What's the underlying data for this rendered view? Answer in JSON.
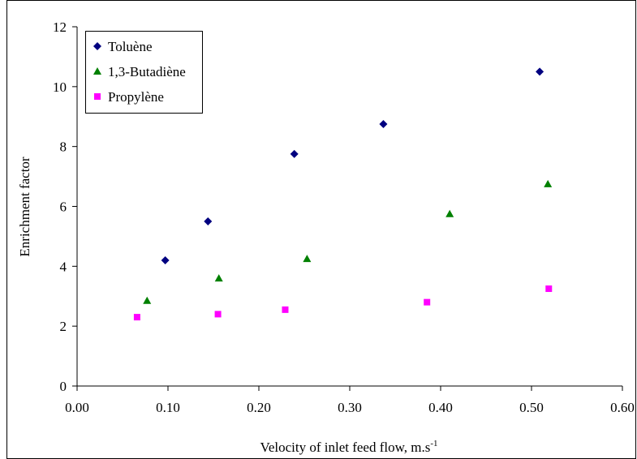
{
  "chart_data": {
    "type": "scatter",
    "title": "",
    "xlabel": "Velocity of inlet feed flow, m.s",
    "xlabel_superscript": "-1",
    "ylabel": "Enrichment factor",
    "xlim": [
      0.0,
      0.6
    ],
    "ylim": [
      0,
      12
    ],
    "x_ticks": [
      "0.00",
      "0.10",
      "0.20",
      "0.30",
      "0.40",
      "0.50",
      "0.60"
    ],
    "y_ticks": [
      "0",
      "2",
      "4",
      "6",
      "8",
      "10",
      "12"
    ],
    "grid": false,
    "legend_position": "top-left",
    "series": [
      {
        "name": "Toluène",
        "marker": "diamond",
        "color": "#000080",
        "points": [
          [
            0.097,
            4.2
          ],
          [
            0.144,
            5.5
          ],
          [
            0.239,
            7.75
          ],
          [
            0.337,
            8.75
          ],
          [
            0.509,
            10.5
          ]
        ]
      },
      {
        "name": "1,3-Butadiène",
        "marker": "triangle",
        "color": "#008000",
        "points": [
          [
            0.077,
            2.85
          ],
          [
            0.156,
            3.6
          ],
          [
            0.253,
            4.25
          ],
          [
            0.41,
            5.75
          ],
          [
            0.518,
            6.75
          ]
        ]
      },
      {
        "name": "Propylène",
        "marker": "square",
        "color": "#FF00FF",
        "points": [
          [
            0.066,
            2.3
          ],
          [
            0.155,
            2.4
          ],
          [
            0.229,
            2.55
          ],
          [
            0.385,
            2.8
          ],
          [
            0.519,
            3.25
          ]
        ]
      }
    ]
  }
}
